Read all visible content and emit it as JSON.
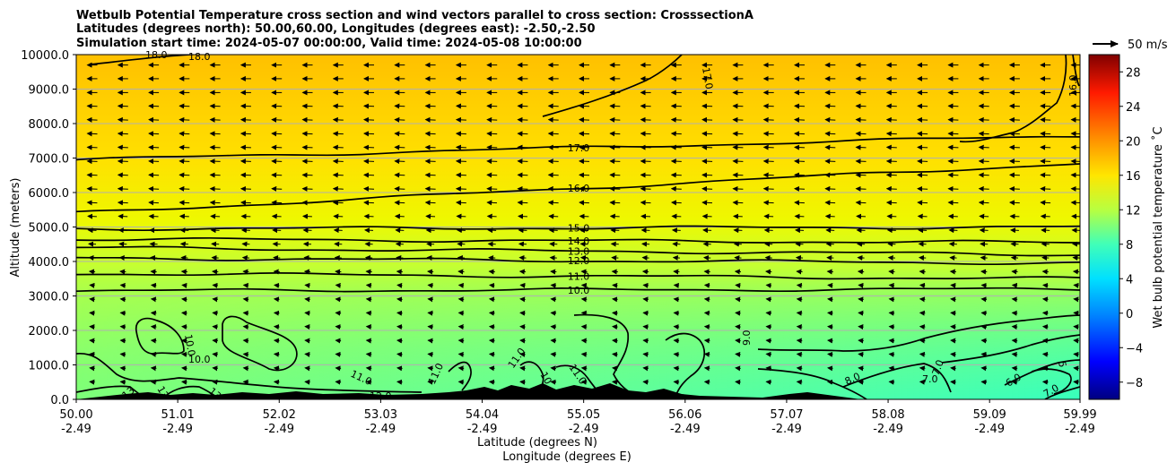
{
  "chart_data": {
    "type": "heatmap",
    "title_lines": [
      "Wetbulb Potential Temperature cross section and wind vectors parallel to cross section: CrosssectionA",
      "Latitudes (degrees north): 50.00,60.00, Longitudes (degrees east): -2.50,-2.50",
      "Simulation start time: 2024-05-07 00:00:00, Valid time: 2024-05-08 10:00:00"
    ],
    "xlabel": "Latitude (degrees N)",
    "xlabel2": "Longitude (degrees E)",
    "ylabel": "Altitude (meters)",
    "xlim": [
      50.0,
      59.99
    ],
    "ylim": [
      0,
      10000
    ],
    "x_ticks": [
      {
        "lat": "50.00",
        "lon": "-2.49",
        "v": 50.0
      },
      {
        "lat": "51.01",
        "lon": "-2.49",
        "v": 51.01
      },
      {
        "lat": "52.02",
        "lon": "-2.49",
        "v": 52.02
      },
      {
        "lat": "53.03",
        "lon": "-2.49",
        "v": 53.03
      },
      {
        "lat": "54.04",
        "lon": "-2.49",
        "v": 54.04
      },
      {
        "lat": "55.05",
        "lon": "-2.49",
        "v": 55.05
      },
      {
        "lat": "56.06",
        "lon": "-2.49",
        "v": 56.06
      },
      {
        "lat": "57.07",
        "lon": "-2.49",
        "v": 57.07
      },
      {
        "lat": "58.08",
        "lon": "-2.49",
        "v": 58.08
      },
      {
        "lat": "59.09",
        "lon": "-2.49",
        "v": 59.09
      },
      {
        "lat": "59.99",
        "lon": "-2.49",
        "v": 59.99
      }
    ],
    "y_ticks": [
      {
        "label": "0.0",
        "v": 0
      },
      {
        "label": "1000.0",
        "v": 1000
      },
      {
        "label": "2000.0",
        "v": 2000
      },
      {
        "label": "3000.0",
        "v": 3000
      },
      {
        "label": "4000.0",
        "v": 4000
      },
      {
        "label": "5000.0",
        "v": 5000
      },
      {
        "label": "6000.0",
        "v": 6000
      },
      {
        "label": "7000.0",
        "v": 7000
      },
      {
        "label": "8000.0",
        "v": 8000
      },
      {
        "label": "9000.0",
        "v": 9000
      },
      {
        "label": "10000.0",
        "v": 10000
      }
    ],
    "grid": "horizontal",
    "colorbar": {
      "label": "Wet bulb potential temperature $^\\circ$C",
      "label_text": "Wet bulb potential temperature ˚C",
      "range": [
        -10,
        30
      ],
      "ticks": [
        "−8",
        "−4",
        "0",
        "4",
        "8",
        "12",
        "16",
        "20",
        "24",
        "28"
      ],
      "tick_values": [
        -8,
        -4,
        0,
        4,
        8,
        12,
        16,
        20,
        24,
        28
      ],
      "colormap": "jet"
    },
    "quiver_key": {
      "label": "50 m/s",
      "value": 50
    },
    "contour_levels": [
      {
        "label": "17.0",
        "level": 17,
        "alt_start": 6950,
        "alt_end": 7650
      },
      {
        "label": "16.0",
        "level": 16,
        "alt_start": 5400,
        "alt_end": 6850
      },
      {
        "label": "15.0",
        "level": 15,
        "alt_start": 4950,
        "alt_end": 5000
      },
      {
        "label": "14.0",
        "level": 14,
        "alt_start": 4650,
        "alt_end": 4550
      },
      {
        "label": "13.0",
        "level": 13,
        "alt_start": 4400,
        "alt_end": 4200
      },
      {
        "label": "12.0",
        "level": 12,
        "alt_start": 4100,
        "alt_end": 3950
      },
      {
        "label": "11.0",
        "level": 11,
        "alt_start": 3650,
        "alt_end": 3500
      },
      {
        "label": "10.0",
        "level": 10,
        "alt_start": 3150,
        "alt_end": 3200
      }
    ],
    "lower_contour_labels": [
      "18.0",
      "18.0",
      "17.0",
      "16.0",
      "10.0",
      "10.0",
      "11.0",
      "12.0",
      "11.0",
      "11.0",
      "10",
      "11.0",
      "9.0",
      "8.0",
      "7.0",
      "7.0",
      "6.0",
      "5",
      "7.0",
      "13",
      "13",
      "13"
    ]
  }
}
